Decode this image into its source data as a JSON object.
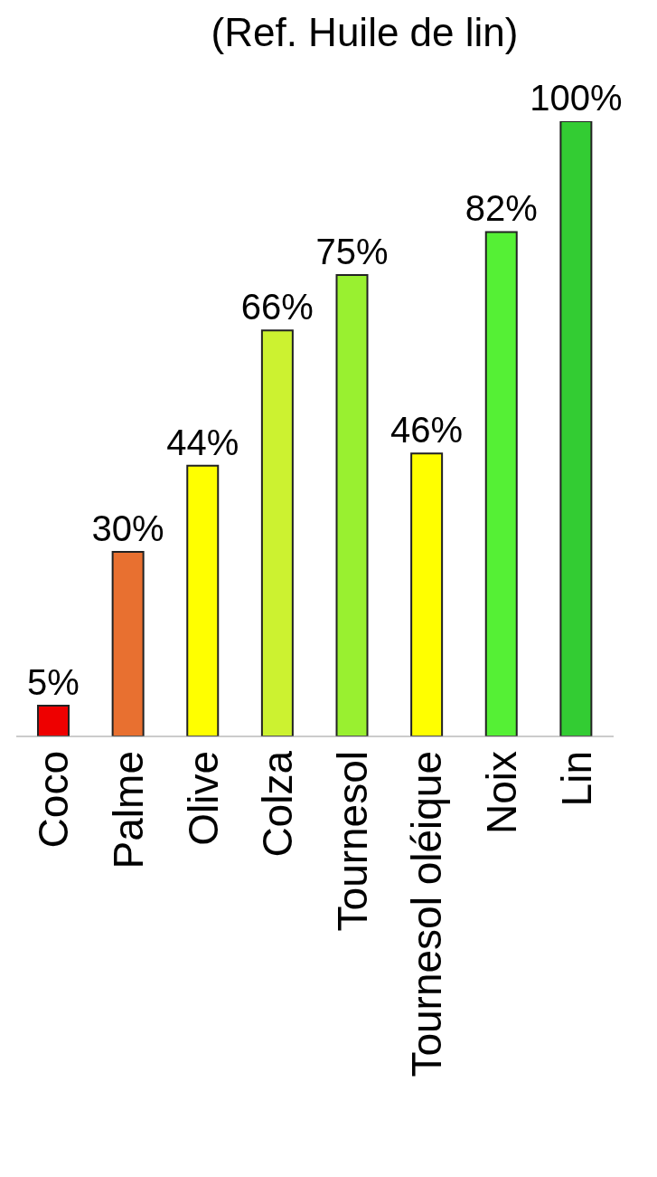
{
  "chart_data": {
    "type": "bar",
    "title": "(Ref. Huile de lin)",
    "categories": [
      "Coco",
      "Palme",
      "Olive",
      "Colza",
      "Tournesol",
      "Tournesol oléique",
      "Noix",
      "Lin"
    ],
    "values": [
      5,
      30,
      44,
      66,
      75,
      46,
      82,
      100
    ],
    "colors": [
      "#ee0000",
      "#e87030",
      "#ffff00",
      "#ccf230",
      "#99f030",
      "#ffff00",
      "#55f035",
      "#33cc33"
    ],
    "value_labels": [
      "5%",
      "30%",
      "44%",
      "66%",
      "75%",
      "46%",
      "82%",
      "100%"
    ],
    "tick_labels": "x",
    "grid": false,
    "legend": false
  }
}
